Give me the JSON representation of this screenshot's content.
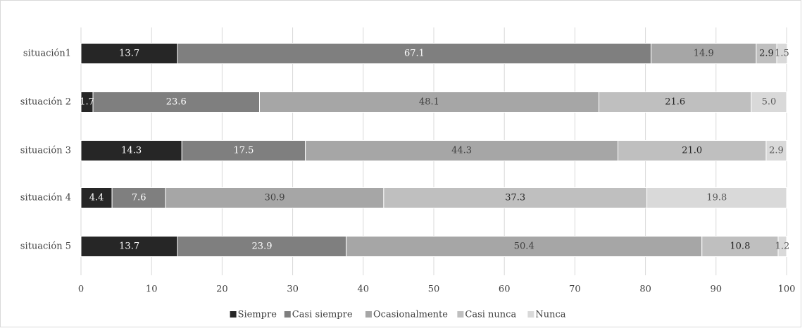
{
  "chart_data": {
    "type": "bar",
    "orientation": "horizontal",
    "stacked": true,
    "categories": [
      "situación1",
      "situación 2",
      "situación 3",
      "situación 4",
      "situación 5"
    ],
    "series": [
      {
        "name": "Siempre",
        "color": "#262626",
        "values": [
          13.7,
          1.7,
          14.3,
          4.4,
          13.7
        ]
      },
      {
        "name": "Casi siempre",
        "color": "#7f7f7f",
        "values": [
          67.1,
          23.6,
          17.5,
          7.6,
          23.9
        ]
      },
      {
        "name": "Ocasionalmente",
        "color": "#a6a6a6",
        "values": [
          14.9,
          48.1,
          44.3,
          30.9,
          50.4
        ]
      },
      {
        "name": "Casi nunca",
        "color": "#bfbfbf",
        "values": [
          2.9,
          21.6,
          21.0,
          37.3,
          10.8
        ]
      },
      {
        "name": "Nunca",
        "color": "#d9d9d9",
        "values": [
          1.5,
          5.0,
          2.9,
          19.8,
          1.2
        ]
      }
    ],
    "label_colors": [
      "#ffffff",
      "#ffffff",
      "#404040",
      "#262626",
      "#595959"
    ],
    "xlim": [
      0,
      100
    ],
    "xticks": [
      "0",
      "10",
      "20",
      "30",
      "40",
      "50",
      "60",
      "70",
      "80",
      "90",
      "100"
    ],
    "grid": true,
    "legend_position": "bottom"
  }
}
